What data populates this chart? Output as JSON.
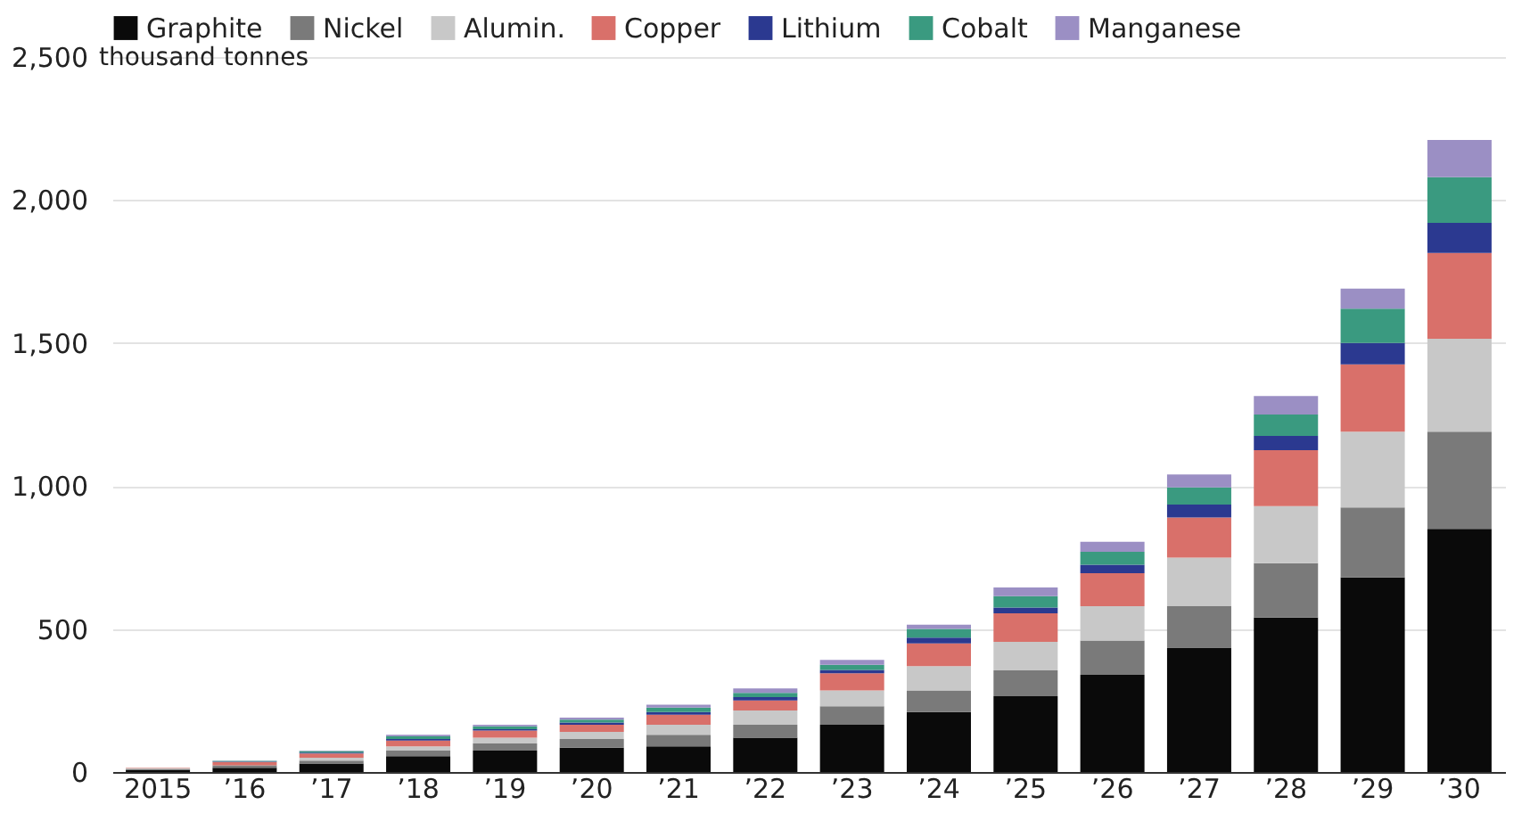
{
  "chart_data": {
    "type": "bar",
    "stacked": true,
    "ylabel": "thousand tonnes",
    "categories": [
      "2015",
      "’16",
      "’17",
      "’18",
      "’19",
      "’20",
      "’21",
      "’22",
      "’23",
      "’24",
      "’25",
      "’26",
      "’27",
      "’28",
      "’29",
      "’30"
    ],
    "series": [
      {
        "name": "Graphite",
        "color": "#0a0a0a",
        "values": [
          8,
          15,
          30,
          55,
          75,
          85,
          90,
          120,
          165,
          210,
          265,
          340,
          435,
          540,
          680,
          850
        ]
      },
      {
        "name": "Nickel",
        "color": "#7a7a7a",
        "values": [
          3,
          8,
          10,
          20,
          25,
          30,
          40,
          45,
          65,
          75,
          90,
          120,
          145,
          190,
          245,
          340
        ]
      },
      {
        "name": "Alumin.",
        "color": "#c8c8c8",
        "values": [
          2,
          null,
          10,
          15,
          20,
          25,
          35,
          50,
          55,
          85,
          100,
          120,
          170,
          200,
          265,
          325
        ]
      },
      {
        "name": "Copper",
        "color": "#d9706a",
        "values": [
          2,
          12,
          15,
          20,
          25,
          25,
          35,
          35,
          60,
          80,
          100,
          115,
          140,
          195,
          235,
          300
        ]
      },
      {
        "name": "Lithium",
        "color": "#2b3990",
        "values": [
          null,
          2,
          3,
          5,
          5,
          8,
          10,
          12,
          12,
          20,
          20,
          30,
          45,
          50,
          75,
          105
        ]
      },
      {
        "name": "Cobalt",
        "color": "#3a9a80",
        "values": [
          0,
          2,
          5,
          10,
          10,
          10,
          15,
          15,
          18,
          30,
          40,
          45,
          60,
          75,
          120,
          160
        ]
      },
      {
        "name": "Manganese",
        "color": "#9b8fc4",
        "values": [
          0,
          1,
          2,
          5,
          5,
          7,
          10,
          15,
          17,
          15,
          30,
          35,
          45,
          65,
          70,
          130
        ]
      }
    ],
    "ylim": [
      0,
      2500
    ],
    "yticks": [
      0,
      {
        "value": 500,
        "label": "500"
      },
      {
        "value": 1000,
        "label": "1,000"
      },
      {
        "value": 1500,
        "label": "1,500"
      },
      {
        "value": 2000,
        "label": "2,000"
      },
      {
        "value": 2500,
        "label": "2,500"
      }
    ],
    "grid": "y",
    "legend": "top"
  }
}
